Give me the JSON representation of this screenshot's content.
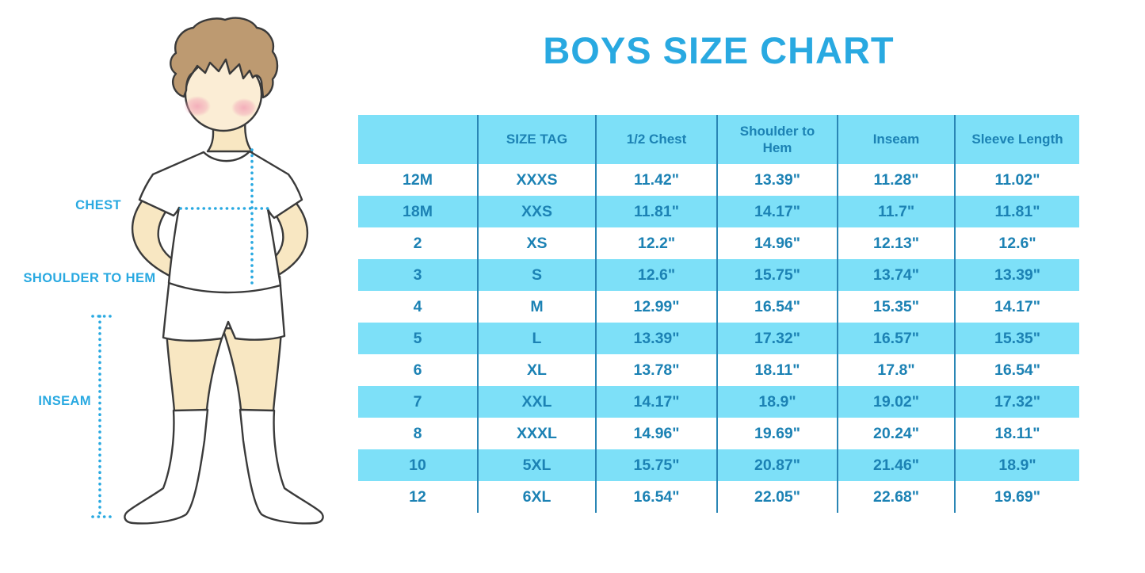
{
  "page": {
    "title": "BOYS SIZE CHART"
  },
  "figure": {
    "labels": {
      "chest": "CHEST",
      "shoulder_to_hem": "SHOULDER TO HEM",
      "inseam": "INSEAM"
    }
  },
  "colors": {
    "accent": "#29A9E1",
    "row_cyan": "#7DE0F8",
    "table_text": "#1C82B4",
    "divider": "#2A86B5",
    "outline": "#3A3A3A",
    "skin": "#F8E7C2",
    "face": "#FBEDD5",
    "hair": "#BD9A71",
    "blush": "#F2A4B6",
    "garment": "#FFFFFF"
  },
  "chart_data": {
    "type": "table",
    "title": "BOYS SIZE CHART",
    "columns": [
      "",
      "SIZE TAG",
      "1/2 Chest",
      "Shoulder to Hem",
      "Inseam",
      "Sleeve Length"
    ],
    "rows": [
      [
        "12M",
        "XXXS",
        "11.42\"",
        "13.39\"",
        "11.28\"",
        "11.02\""
      ],
      [
        "18M",
        "XXS",
        "11.81\"",
        "14.17\"",
        "11.7\"",
        "11.81\""
      ],
      [
        "2",
        "XS",
        "12.2\"",
        "14.96\"",
        "12.13\"",
        "12.6\""
      ],
      [
        "3",
        "S",
        "12.6\"",
        "15.75\"",
        "13.74\"",
        "13.39\""
      ],
      [
        "4",
        "M",
        "12.99\"",
        "16.54\"",
        "15.35\"",
        "14.17\""
      ],
      [
        "5",
        "L",
        "13.39\"",
        "17.32\"",
        "16.57\"",
        "15.35\""
      ],
      [
        "6",
        "XL",
        "13.78\"",
        "18.11\"",
        "17.8\"",
        "16.54\""
      ],
      [
        "7",
        "XXL",
        "14.17\"",
        "18.9\"",
        "19.02\"",
        "17.32\""
      ],
      [
        "8",
        "XXXL",
        "14.96\"",
        "19.69\"",
        "20.24\"",
        "18.11\""
      ],
      [
        "10",
        "5XL",
        "15.75\"",
        "20.87\"",
        "21.46\"",
        "18.9\""
      ],
      [
        "12",
        "6XL",
        "16.54\"",
        "22.05\"",
        "22.68\"",
        "19.69\""
      ]
    ]
  }
}
